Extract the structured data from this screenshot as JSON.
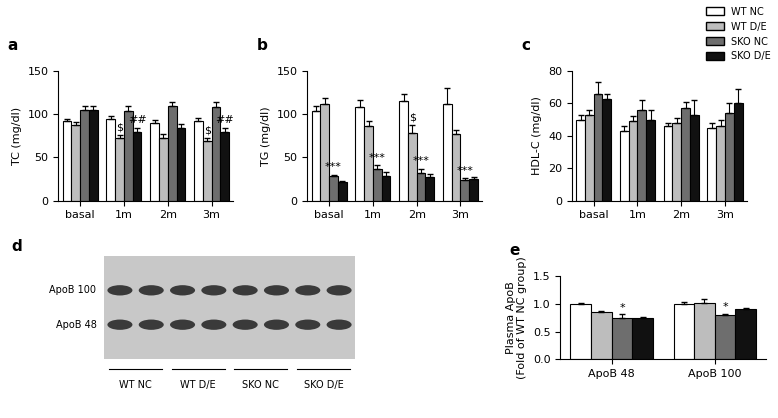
{
  "chart_data": [
    {
      "panel_label": "a",
      "type": "bar",
      "ylabel": "TC (mg/dl)",
      "categories": [
        "basal",
        "1m",
        "2m",
        "3m"
      ],
      "ylim": [
        0,
        150
      ],
      "yticks": [
        0,
        50,
        100,
        150
      ],
      "legend": "upper right",
      "series": [
        {
          "name": "WT NC",
          "color": "#ffffff",
          "values": [
            92,
            95,
            90,
            92
          ],
          "errors": [
            3,
            3,
            3,
            4
          ]
        },
        {
          "name": "WT D/E",
          "color": "#bdbdbd",
          "values": [
            88,
            72,
            73,
            69
          ],
          "errors": [
            3,
            4,
            4,
            3
          ]
        },
        {
          "name": "SKO NC",
          "color": "#6e6e6e",
          "values": [
            105,
            104,
            109,
            108
          ],
          "errors": [
            5,
            6,
            5,
            6
          ]
        },
        {
          "name": "SKO D/E",
          "color": "#111111",
          "values": [
            105,
            79,
            84,
            79
          ],
          "errors": [
            5,
            5,
            5,
            5
          ]
        }
      ],
      "annotations": [
        {
          "category": "1m",
          "series": "WT D/E",
          "text": "$"
        },
        {
          "category": "1m",
          "series": "SKO D/E",
          "text": "##"
        },
        {
          "category": "3m",
          "series": "WT D/E",
          "text": "$"
        },
        {
          "category": "3m",
          "series": "SKO D/E",
          "text": "##"
        }
      ]
    },
    {
      "panel_label": "b",
      "type": "bar",
      "ylabel": "TG (mg/dl)",
      "categories": [
        "basal",
        "1m",
        "2m",
        "3m"
      ],
      "ylim": [
        0,
        150
      ],
      "yticks": [
        0,
        50,
        100,
        150
      ],
      "series": [
        {
          "name": "WT NC",
          "color": "#ffffff",
          "values": [
            104,
            108,
            115,
            112
          ],
          "errors": [
            6,
            9,
            9,
            18
          ]
        },
        {
          "name": "WT D/E",
          "color": "#bdbdbd",
          "values": [
            112,
            86,
            78,
            77
          ],
          "errors": [
            7,
            6,
            10,
            5
          ]
        },
        {
          "name": "SKO NC",
          "color": "#6e6e6e",
          "values": [
            28,
            37,
            32,
            24
          ],
          "errors": [
            2,
            4,
            5,
            2
          ]
        },
        {
          "name": "SKO D/E",
          "color": "#111111",
          "values": [
            21,
            29,
            27,
            25
          ],
          "errors": [
            2,
            4,
            4,
            2
          ]
        }
      ],
      "annotations": [
        {
          "category": "basal",
          "series": "SKO NC",
          "text": "***"
        },
        {
          "category": "1m",
          "series": "SKO NC",
          "text": "***"
        },
        {
          "category": "2m",
          "series": "WT D/E",
          "text": "$"
        },
        {
          "category": "2m",
          "series": "SKO NC",
          "text": "***"
        },
        {
          "category": "3m",
          "series": "SKO NC",
          "text": "***"
        }
      ]
    },
    {
      "panel_label": "c",
      "type": "bar",
      "ylabel": "HDL-C (mg/dl)",
      "categories": [
        "basal",
        "1m",
        "2m",
        "3m"
      ],
      "ylim": [
        0,
        80
      ],
      "yticks": [
        0,
        20,
        40,
        60,
        80
      ],
      "series": [
        {
          "name": "WT NC",
          "color": "#ffffff",
          "values": [
            50,
            43,
            46,
            45
          ],
          "errors": [
            3,
            3,
            2,
            3
          ]
        },
        {
          "name": "WT D/E",
          "color": "#bdbdbd",
          "values": [
            53,
            49,
            48,
            46
          ],
          "errors": [
            3,
            3,
            3,
            4
          ]
        },
        {
          "name": "SKO NC",
          "color": "#6e6e6e",
          "values": [
            66,
            56,
            57,
            54
          ],
          "errors": [
            7,
            6,
            4,
            6
          ]
        },
        {
          "name": "SKO D/E",
          "color": "#111111",
          "values": [
            63,
            50,
            53,
            60
          ],
          "errors": [
            3,
            6,
            9,
            9
          ]
        }
      ],
      "annotations": []
    },
    {
      "panel_label": "e",
      "type": "bar",
      "ylabel": "Plasma ApoB\n(Fold of WT NC group)",
      "categories": [
        "ApoB 48",
        "ApoB 100"
      ],
      "ylim": [
        0.0,
        1.5
      ],
      "yticks": [
        0.0,
        0.5,
        1.0,
        1.5
      ],
      "series": [
        {
          "name": "WT NC",
          "color": "#ffffff",
          "values": [
            1.0,
            1.0
          ],
          "errors": [
            0.01,
            0.03
          ]
        },
        {
          "name": "WT D/E",
          "color": "#bdbdbd",
          "values": [
            0.85,
            1.02
          ],
          "errors": [
            0.02,
            0.06
          ]
        },
        {
          "name": "SKO NC",
          "color": "#6e6e6e",
          "values": [
            0.75,
            0.79
          ],
          "errors": [
            0.06,
            0.03
          ]
        },
        {
          "name": "SKO D/E",
          "color": "#111111",
          "values": [
            0.74,
            0.9
          ],
          "errors": [
            0.02,
            0.02
          ]
        }
      ],
      "annotations": [
        {
          "category": "ApoB 48",
          "series": "SKO NC",
          "text": "*"
        },
        {
          "category": "ApoB 100",
          "series": "SKO NC",
          "text": "*"
        }
      ]
    }
  ],
  "blot": {
    "panel_label": "d",
    "bands": [
      "ApoB 100",
      "ApoB 48"
    ],
    "groups": [
      "WT NC",
      "WT D/E",
      "SKO NC",
      "SKO D/E"
    ],
    "lanes_per_group": 2
  }
}
